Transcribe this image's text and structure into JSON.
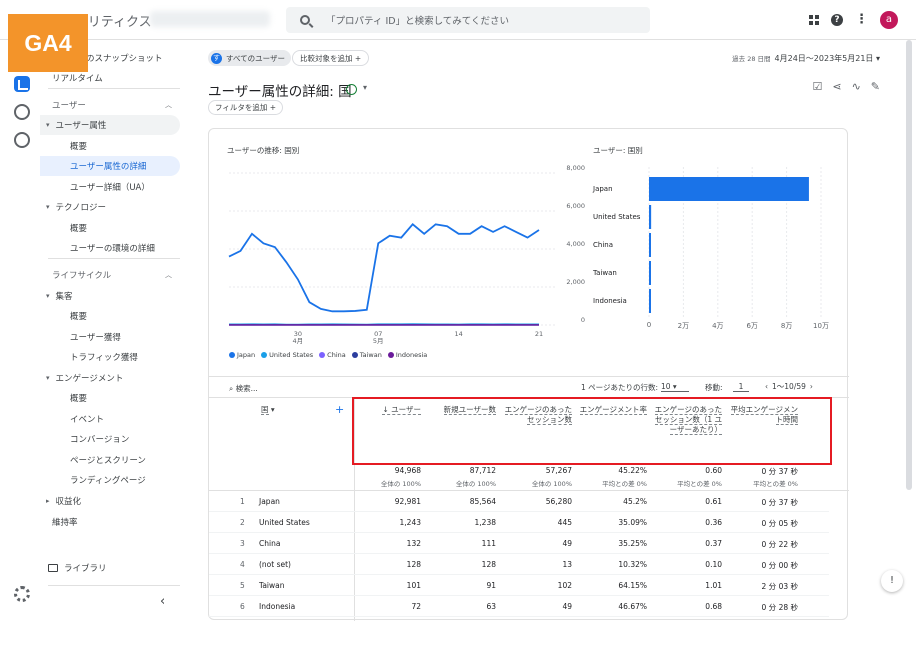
{
  "header": {
    "app_name": "アナリティクス",
    "search_placeholder": "「プロパティ ID」と検索してみてください",
    "avatar_letter": "a"
  },
  "badge": {
    "label": "GA4",
    "color": "#f3942a"
  },
  "sidebar": {
    "items": [
      {
        "label": "レポートのスナップショット",
        "type": "link"
      },
      {
        "label": "リアルタイム",
        "type": "link"
      },
      {
        "label": "ユーザー",
        "type": "section"
      },
      {
        "label": "ユーザー属性",
        "type": "group"
      },
      {
        "label": "概要",
        "type": "sub"
      },
      {
        "label": "ユーザー属性の詳細",
        "type": "sub-active"
      },
      {
        "label": "ユーザー詳細（UA）",
        "type": "sub"
      },
      {
        "label": "テクノロジー",
        "type": "group"
      },
      {
        "label": "概要",
        "type": "sub"
      },
      {
        "label": "ユーザーの環境の詳細",
        "type": "sub"
      },
      {
        "label": "ライフサイクル",
        "type": "section"
      },
      {
        "label": "集客",
        "type": "group"
      },
      {
        "label": "概要",
        "type": "sub"
      },
      {
        "label": "ユーザー獲得",
        "type": "sub"
      },
      {
        "label": "トラフィック獲得",
        "type": "sub"
      },
      {
        "label": "エンゲージメント",
        "type": "group"
      },
      {
        "label": "概要",
        "type": "sub"
      },
      {
        "label": "イベント",
        "type": "sub"
      },
      {
        "label": "コンバージョン",
        "type": "sub"
      },
      {
        "label": "ページとスクリーン",
        "type": "sub"
      },
      {
        "label": "ランディングページ",
        "type": "sub"
      },
      {
        "label": "収益化",
        "type": "group-collapsed"
      },
      {
        "label": "維持率",
        "type": "link"
      }
    ],
    "library": "ライブラリ"
  },
  "toolbar": {
    "all_users": "すべてのユーザー",
    "add_comparison": "比較対象を追加",
    "date_prefix": "過去 28 日間",
    "date_range": "4月24日～2023年5月21日",
    "page_title": "ユーザー属性の詳細: 国",
    "add_filter": "フィルタを追加"
  },
  "line_chart": {
    "title": "ユーザーの推移: 国別",
    "y_ticks": [
      "8,000",
      "6,000",
      "4,000",
      "2,000",
      "0"
    ],
    "x_ticks": [
      {
        "d": "30",
        "m": "4月"
      },
      {
        "d": "07",
        "m": "5月"
      },
      {
        "d": "14",
        "m": ""
      },
      {
        "d": "21",
        "m": ""
      }
    ],
    "legend": [
      {
        "name": "Japan",
        "color": "#1a73e8"
      },
      {
        "name": "United States",
        "color": "#1a9fe8"
      },
      {
        "name": "China",
        "color": "#7b61ff"
      },
      {
        "name": "Taiwan",
        "color": "#2c3e9e"
      },
      {
        "name": "Indonesia",
        "color": "#6a1b9a"
      }
    ]
  },
  "bar_chart": {
    "title": "ユーザー: 国別",
    "x_ticks": [
      "0",
      "2万",
      "4万",
      "6万",
      "8万",
      "10万"
    ]
  },
  "chart_data": [
    {
      "type": "line",
      "title": "ユーザーの推移: 国別",
      "x": [
        "4/24",
        "4/25",
        "4/26",
        "4/27",
        "4/28",
        "4/29",
        "4/30",
        "5/1",
        "5/2",
        "5/3",
        "5/4",
        "5/5",
        "5/6",
        "5/7",
        "5/8",
        "5/9",
        "5/10",
        "5/11",
        "5/12",
        "5/13",
        "5/14",
        "5/15",
        "5/16",
        "5/17",
        "5/18",
        "5/19",
        "5/20",
        "5/21"
      ],
      "ylim": [
        0,
        8000
      ],
      "series": [
        {
          "name": "Japan",
          "values": [
            3600,
            3900,
            4800,
            4300,
            4100,
            3300,
            2400,
            1200,
            850,
            720,
            720,
            740,
            800,
            4300,
            4700,
            4600,
            5300,
            4800,
            5300,
            5200,
            4800,
            4800,
            5200,
            4900,
            5200,
            4900,
            4600,
            5000
          ]
        },
        {
          "name": "United States",
          "values": [
            40,
            45,
            48,
            42,
            46,
            30,
            28,
            40,
            44,
            46,
            45,
            38,
            30,
            48,
            50,
            47,
            52,
            48,
            45,
            40,
            38,
            50,
            48,
            45,
            50,
            44,
            40,
            42
          ]
        },
        {
          "name": "China",
          "values": [
            5,
            5,
            6,
            5,
            4,
            4,
            5,
            6,
            5,
            5,
            4,
            4,
            5,
            6,
            5,
            5,
            6,
            5,
            4,
            4,
            5,
            6,
            5,
            5,
            6,
            5,
            4,
            5
          ]
        },
        {
          "name": "Taiwan",
          "values": [
            4,
            4,
            4,
            3,
            4,
            3,
            3,
            4,
            4,
            4,
            3,
            3,
            3,
            4,
            4,
            4,
            4,
            3,
            3,
            3,
            4,
            4,
            4,
            4,
            3,
            3,
            3,
            4
          ]
        },
        {
          "name": "Indonesia",
          "values": [
            3,
            3,
            3,
            2,
            3,
            2,
            2,
            3,
            3,
            3,
            2,
            2,
            2,
            3,
            3,
            3,
            3,
            2,
            2,
            2,
            3,
            3,
            3,
            3,
            2,
            2,
            2,
            3
          ]
        }
      ]
    },
    {
      "type": "bar",
      "title": "ユーザー: 国別",
      "categories": [
        "Japan",
        "United States",
        "China",
        "Taiwan",
        "Indonesia"
      ],
      "values": [
        92981,
        1243,
        132,
        101,
        72
      ],
      "xlim": [
        0,
        100000
      ]
    }
  ],
  "table": {
    "search_placeholder": "検索...",
    "rows_per_page_label": "1 ページあたりの行数:",
    "rows_per_page": "10",
    "move_label": "移動:",
    "move_value": "1",
    "pager": "1～10/59",
    "dim_header": "国",
    "columns": [
      {
        "label": "↓ ユーザー",
        "total": "94,968",
        "sub": "全体の 100%"
      },
      {
        "label": "新規ユーザー数",
        "total": "87,712",
        "sub": "全体の 100%"
      },
      {
        "label": "エンゲージのあったセッション数",
        "total": "57,267",
        "sub": "全体の 100%"
      },
      {
        "label": "エンゲージメント率",
        "total": "45.22%",
        "sub": "平均との差 0%"
      },
      {
        "label": "エンゲージのあったセッション数（1 ユーザーあたり）",
        "total": "0.60",
        "sub": "平均との差 0%"
      },
      {
        "label": "平均エンゲージメント時間",
        "total": "0 分 37 秒",
        "sub": "平均との差 0%"
      }
    ],
    "rows": [
      {
        "i": "1",
        "name": "Japan",
        "v": [
          "92,981",
          "85,564",
          "56,280",
          "45.2%",
          "0.61",
          "0 分 37 秒"
        ]
      },
      {
        "i": "2",
        "name": "United States",
        "v": [
          "1,243",
          "1,238",
          "445",
          "35.09%",
          "0.36",
          "0 分 05 秒"
        ]
      },
      {
        "i": "3",
        "name": "China",
        "v": [
          "132",
          "111",
          "49",
          "35.25%",
          "0.37",
          "0 分 22 秒"
        ]
      },
      {
        "i": "4",
        "name": "(not set)",
        "v": [
          "128",
          "128",
          "13",
          "10.32%",
          "0.10",
          "0 分 00 秒"
        ]
      },
      {
        "i": "5",
        "name": "Taiwan",
        "v": [
          "101",
          "91",
          "102",
          "64.15%",
          "1.01",
          "2 分 03 秒"
        ]
      },
      {
        "i": "6",
        "name": "Indonesia",
        "v": [
          "72",
          "63",
          "49",
          "46.67%",
          "0.68",
          "0 分 28 秒"
        ]
      }
    ]
  }
}
